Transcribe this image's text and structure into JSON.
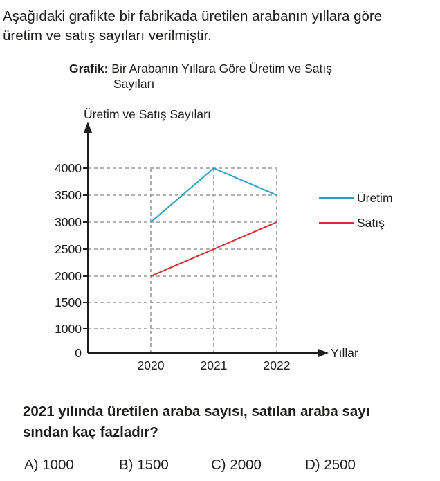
{
  "intro_text_line1": "Aşağıdaki grafikte bir fabrikada üretilen arabanın yıllara göre",
  "intro_text_line2": "üretim ve satış sayıları verilmiştir.",
  "caption": {
    "prefix": "Grafik:",
    "line1": "Bir Arabanın Yıllara Göre Üretim ve Satış",
    "line2": "Sayıları"
  },
  "chart_data": {
    "type": "line",
    "title": "Grafik: Bir Arabanın Yıllara Göre Üretim ve Satış Sayıları",
    "ylabel": "Üretim ve Satış Sayıları",
    "xlabel": "Yıllar",
    "categories": [
      "2020",
      "2021",
      "2022"
    ],
    "y_ticks": [
      "0",
      "1000",
      "1500",
      "2000",
      "2500",
      "3000",
      "3500",
      "4000"
    ],
    "grid": "dashed",
    "legend_position": "right",
    "series": [
      {
        "name": "Üretim",
        "color": "#2a9fc4",
        "values": [
          3000,
          4000,
          3500
        ]
      },
      {
        "name": "Satış",
        "color": "#cf2e2e",
        "values": [
          2000,
          2500,
          3000
        ]
      }
    ]
  },
  "question_line1": "2021 yılında üretilen araba sayısı, satılan araba sayı",
  "question_line2": "sından kaç fazladır?",
  "options": [
    "A) 1000",
    "B) 1500",
    "C) 2000",
    "D) 2500"
  ]
}
